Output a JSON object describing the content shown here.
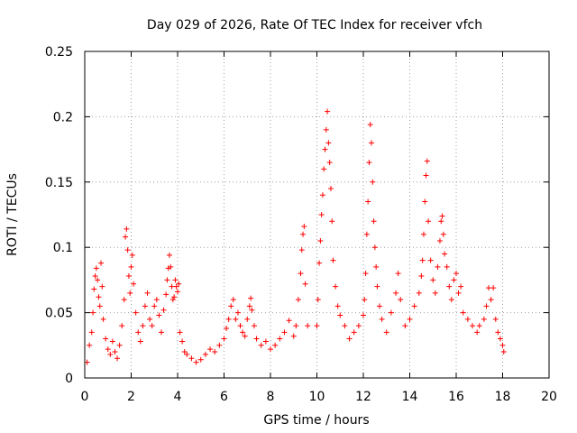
{
  "chart_data": {
    "type": "scatter",
    "title": "Day 029 of 2026, Rate Of TEC Index for receiver vfch",
    "xlabel": "GPS time / hours",
    "ylabel": "ROTI / TECUs",
    "xlim": [
      0,
      20
    ],
    "ylim": [
      0,
      0.25
    ],
    "x_ticks": [
      0,
      2,
      4,
      6,
      8,
      10,
      12,
      14,
      16,
      18,
      20
    ],
    "x_tick_labels": [
      "0",
      "2",
      "4",
      "6",
      "8",
      "10",
      "12",
      "14",
      "16",
      "18",
      "20"
    ],
    "y_ticks": [
      0,
      0.05,
      0.1,
      0.15,
      0.2,
      0.25
    ],
    "y_tick_labels": [
      "0",
      "0.05",
      "0.1",
      "0.15",
      "0.2",
      "0.25"
    ],
    "grid": true,
    "marker": "+",
    "color": "#ff0000",
    "series": [
      {
        "name": "ROTI",
        "points": [
          [
            0.1,
            0.012
          ],
          [
            0.2,
            0.025
          ],
          [
            0.3,
            0.035
          ],
          [
            0.35,
            0.05
          ],
          [
            0.4,
            0.068
          ],
          [
            0.45,
            0.078
          ],
          [
            0.5,
            0.084
          ],
          [
            0.55,
            0.075
          ],
          [
            0.6,
            0.062
          ],
          [
            0.65,
            0.055
          ],
          [
            0.7,
            0.088
          ],
          [
            0.75,
            0.07
          ],
          [
            0.8,
            0.045
          ],
          [
            0.9,
            0.03
          ],
          [
            1.0,
            0.022
          ],
          [
            1.1,
            0.018
          ],
          [
            1.2,
            0.028
          ],
          [
            1.3,
            0.02
          ],
          [
            1.4,
            0.015
          ],
          [
            1.5,
            0.025
          ],
          [
            1.6,
            0.04
          ],
          [
            1.7,
            0.06
          ],
          [
            1.75,
            0.108
          ],
          [
            1.8,
            0.114
          ],
          [
            1.85,
            0.098
          ],
          [
            1.9,
            0.078
          ],
          [
            1.95,
            0.065
          ],
          [
            2.0,
            0.085
          ],
          [
            2.05,
            0.094
          ],
          [
            2.1,
            0.072
          ],
          [
            2.2,
            0.05
          ],
          [
            2.3,
            0.035
          ],
          [
            2.4,
            0.028
          ],
          [
            2.5,
            0.04
          ],
          [
            2.6,
            0.055
          ],
          [
            2.7,
            0.065
          ],
          [
            2.8,
            0.045
          ],
          [
            2.9,
            0.04
          ],
          [
            3.0,
            0.055
          ],
          [
            3.1,
            0.06
          ],
          [
            3.2,
            0.048
          ],
          [
            3.3,
            0.035
          ],
          [
            3.4,
            0.052
          ],
          [
            3.5,
            0.064
          ],
          [
            3.55,
            0.075
          ],
          [
            3.6,
            0.084
          ],
          [
            3.65,
            0.094
          ],
          [
            3.7,
            0.085
          ],
          [
            3.75,
            0.07
          ],
          [
            3.8,
            0.06
          ],
          [
            3.85,
            0.062
          ],
          [
            3.9,
            0.075
          ],
          [
            3.95,
            0.07
          ],
          [
            4.0,
            0.066
          ],
          [
            4.05,
            0.072
          ],
          [
            4.1,
            0.035
          ],
          [
            4.2,
            0.028
          ],
          [
            4.3,
            0.02
          ],
          [
            4.4,
            0.018
          ],
          [
            4.6,
            0.015
          ],
          [
            4.8,
            0.012
          ],
          [
            5.0,
            0.014
          ],
          [
            5.2,
            0.018
          ],
          [
            5.4,
            0.022
          ],
          [
            5.6,
            0.02
          ],
          [
            5.8,
            0.025
          ],
          [
            6.0,
            0.03
          ],
          [
            6.1,
            0.038
          ],
          [
            6.2,
            0.045
          ],
          [
            6.3,
            0.055
          ],
          [
            6.4,
            0.06
          ],
          [
            6.5,
            0.045
          ],
          [
            6.6,
            0.05
          ],
          [
            6.7,
            0.04
          ],
          [
            6.8,
            0.035
          ],
          [
            6.9,
            0.032
          ],
          [
            7.0,
            0.045
          ],
          [
            7.1,
            0.055
          ],
          [
            7.15,
            0.061
          ],
          [
            7.2,
            0.052
          ],
          [
            7.3,
            0.04
          ],
          [
            7.4,
            0.03
          ],
          [
            7.6,
            0.025
          ],
          [
            7.8,
            0.028
          ],
          [
            8.0,
            0.022
          ],
          [
            8.2,
            0.025
          ],
          [
            8.4,
            0.03
          ],
          [
            8.6,
            0.035
          ],
          [
            8.8,
            0.044
          ],
          [
            9.0,
            0.032
          ],
          [
            9.1,
            0.04
          ],
          [
            9.2,
            0.06
          ],
          [
            9.3,
            0.08
          ],
          [
            9.35,
            0.098
          ],
          [
            9.4,
            0.11
          ],
          [
            9.45,
            0.116
          ],
          [
            9.5,
            0.072
          ],
          [
            9.6,
            0.04
          ],
          [
            10.0,
            0.04
          ],
          [
            10.05,
            0.06
          ],
          [
            10.1,
            0.088
          ],
          [
            10.15,
            0.105
          ],
          [
            10.2,
            0.125
          ],
          [
            10.25,
            0.14
          ],
          [
            10.3,
            0.16
          ],
          [
            10.35,
            0.175
          ],
          [
            10.4,
            0.19
          ],
          [
            10.45,
            0.204
          ],
          [
            10.5,
            0.18
          ],
          [
            10.55,
            0.165
          ],
          [
            10.6,
            0.145
          ],
          [
            10.65,
            0.12
          ],
          [
            10.7,
            0.09
          ],
          [
            10.8,
            0.07
          ],
          [
            10.9,
            0.055
          ],
          [
            11.0,
            0.048
          ],
          [
            11.2,
            0.04
          ],
          [
            11.4,
            0.03
          ],
          [
            11.6,
            0.035
          ],
          [
            11.8,
            0.04
          ],
          [
            12.0,
            0.048
          ],
          [
            12.05,
            0.06
          ],
          [
            12.1,
            0.08
          ],
          [
            12.15,
            0.11
          ],
          [
            12.2,
            0.135
          ],
          [
            12.25,
            0.165
          ],
          [
            12.3,
            0.194
          ],
          [
            12.35,
            0.18
          ],
          [
            12.4,
            0.15
          ],
          [
            12.45,
            0.12
          ],
          [
            12.5,
            0.1
          ],
          [
            12.55,
            0.085
          ],
          [
            12.6,
            0.07
          ],
          [
            12.7,
            0.055
          ],
          [
            12.8,
            0.045
          ],
          [
            13.0,
            0.035
          ],
          [
            13.2,
            0.05
          ],
          [
            13.4,
            0.065
          ],
          [
            13.5,
            0.08
          ],
          [
            13.6,
            0.06
          ],
          [
            13.8,
            0.04
          ],
          [
            14.0,
            0.045
          ],
          [
            14.2,
            0.055
          ],
          [
            14.4,
            0.065
          ],
          [
            14.5,
            0.078
          ],
          [
            14.55,
            0.09
          ],
          [
            14.6,
            0.11
          ],
          [
            14.65,
            0.135
          ],
          [
            14.7,
            0.155
          ],
          [
            14.75,
            0.166
          ],
          [
            14.8,
            0.12
          ],
          [
            14.9,
            0.09
          ],
          [
            15.0,
            0.075
          ],
          [
            15.1,
            0.065
          ],
          [
            15.2,
            0.085
          ],
          [
            15.3,
            0.105
          ],
          [
            15.35,
            0.12
          ],
          [
            15.4,
            0.124
          ],
          [
            15.45,
            0.11
          ],
          [
            15.5,
            0.095
          ],
          [
            15.6,
            0.085
          ],
          [
            15.7,
            0.07
          ],
          [
            15.8,
            0.06
          ],
          [
            15.9,
            0.075
          ],
          [
            16.0,
            0.08
          ],
          [
            16.1,
            0.065
          ],
          [
            16.2,
            0.07
          ],
          [
            16.3,
            0.05
          ],
          [
            16.5,
            0.045
          ],
          [
            16.7,
            0.04
          ],
          [
            16.9,
            0.035
          ],
          [
            17.0,
            0.04
          ],
          [
            17.2,
            0.045
          ],
          [
            17.3,
            0.055
          ],
          [
            17.4,
            0.069
          ],
          [
            17.5,
            0.06
          ],
          [
            17.6,
            0.069
          ],
          [
            17.7,
            0.045
          ],
          [
            17.8,
            0.035
          ],
          [
            17.9,
            0.03
          ],
          [
            18.0,
            0.025
          ],
          [
            18.05,
            0.02
          ]
        ]
      }
    ]
  }
}
